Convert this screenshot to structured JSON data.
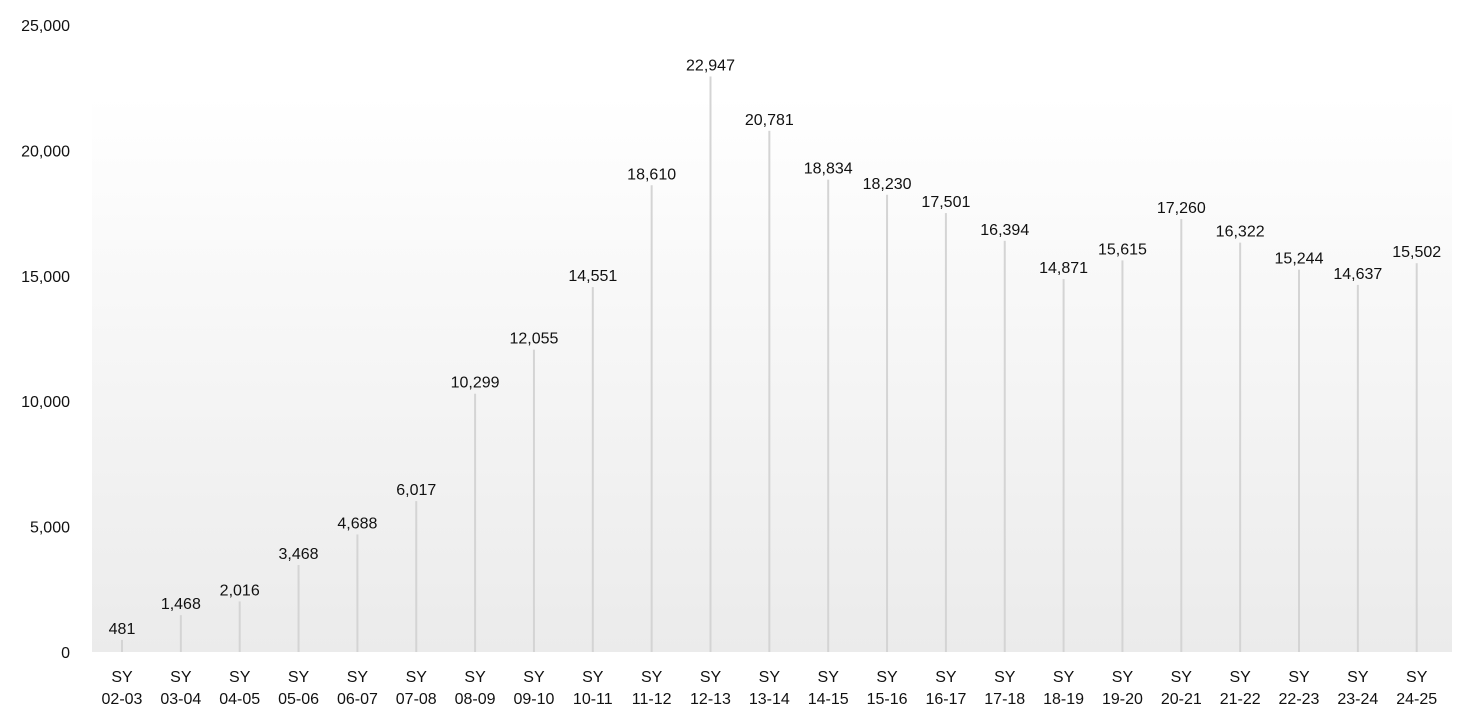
{
  "chart_data": {
    "type": "bar",
    "categories": [
      [
        "SY",
        "02-03"
      ],
      [
        "SY",
        "03-04"
      ],
      [
        "SY",
        "04-05"
      ],
      [
        "SY",
        "05-06"
      ],
      [
        "SY",
        "06-07"
      ],
      [
        "SY",
        "07-08"
      ],
      [
        "SY",
        "08-09"
      ],
      [
        "SY",
        "09-10"
      ],
      [
        "SY",
        "10-11"
      ],
      [
        "SY",
        "11-12"
      ],
      [
        "SY",
        "12-13"
      ],
      [
        "SY",
        "13-14"
      ],
      [
        "SY",
        "14-15"
      ],
      [
        "SY",
        "15-16"
      ],
      [
        "SY",
        "16-17"
      ],
      [
        "SY",
        "17-18"
      ],
      [
        "SY",
        "18-19"
      ],
      [
        "SY",
        "19-20"
      ],
      [
        "SY",
        "20-21"
      ],
      [
        "SY",
        "21-22"
      ],
      [
        "SY",
        "22-23"
      ],
      [
        "SY",
        "23-24"
      ],
      [
        "SY",
        "24-25"
      ]
    ],
    "values": [
      481,
      1468,
      2016,
      3468,
      4688,
      6017,
      10299,
      12055,
      14551,
      18610,
      22947,
      20781,
      18834,
      18230,
      17501,
      16394,
      14871,
      15615,
      17260,
      16322,
      15244,
      14637,
      15502
    ],
    "value_labels": [
      "481",
      "1,468",
      "2,016",
      "3,468",
      "4,688",
      "6,017",
      "10,299",
      "12,055",
      "14,551",
      "18,610",
      "22,947",
      "20,781",
      "18,834",
      "18,230",
      "17,501",
      "16,394",
      "14,871",
      "15,615",
      "17,260",
      "16,322",
      "15,244",
      "14,637",
      "15,502"
    ],
    "ylim": [
      0,
      25000
    ],
    "yticks": [
      0,
      5000,
      10000,
      15000,
      20000,
      25000
    ],
    "ytick_labels": [
      "0",
      "5,000",
      "10,000",
      "15,000",
      "20,000",
      "25,000"
    ],
    "title": "",
    "xlabel": "",
    "ylabel": "",
    "grid": false,
    "legend": "none",
    "colors": {
      "bar": "#d4d4d4",
      "plot_bg_top": "#ffffff",
      "plot_bg_bottom": "#ebebeb",
      "text": "#111111"
    }
  }
}
